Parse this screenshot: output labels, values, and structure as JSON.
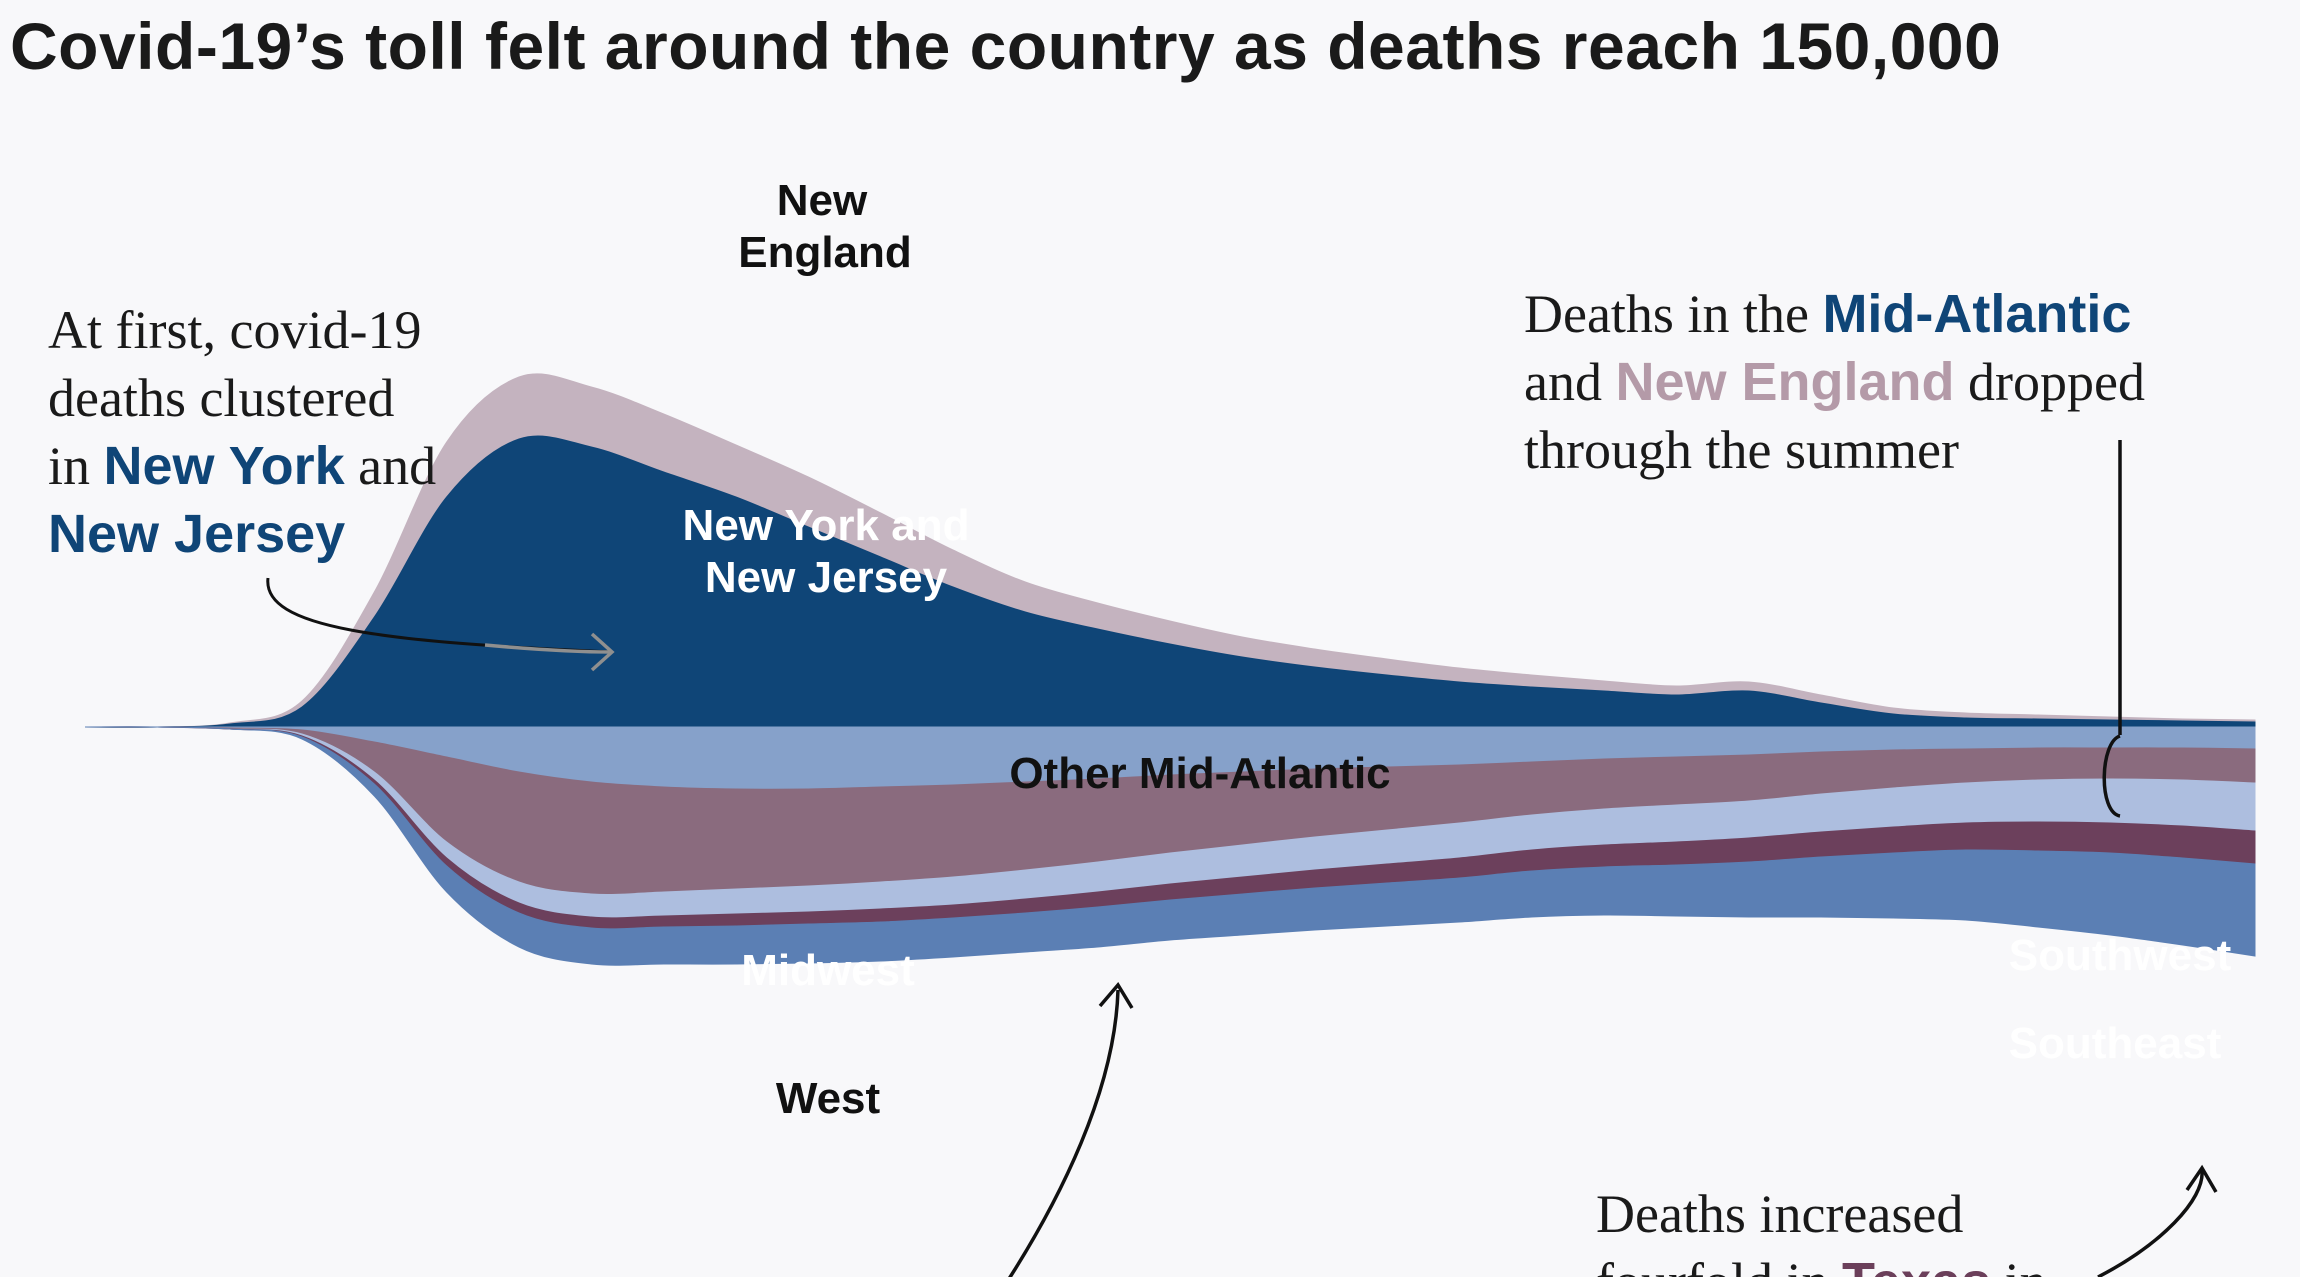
{
  "title": "Covid-19’s toll felt around the country as deaths reach 150,000",
  "chart_data": {
    "type": "area",
    "subtype": "streamgraph",
    "title": "Covid-19’s toll felt around the country as deaths reach 150,000",
    "xlabel": "",
    "ylabel": "",
    "grid": false,
    "legend": "inline labels",
    "x": [
      0,
      1,
      2,
      3,
      4,
      5,
      6,
      7,
      8,
      9,
      10,
      11,
      12,
      13,
      14,
      15,
      16,
      17,
      18,
      19,
      20,
      21,
      22,
      23,
      24,
      25,
      26,
      27,
      28,
      29,
      30
    ],
    "series": [
      {
        "name": "New England",
        "color": "#c4b3bf",
        "values": [
          0,
          0,
          1,
          6,
          25,
          55,
          62,
          60,
          58,
          52,
          50,
          44,
          37,
          30,
          26,
          23,
          20,
          18,
          16,
          14,
          12,
          10,
          9,
          9,
          8,
          6,
          5,
          4,
          3,
          2,
          2
        ]
      },
      {
        "name": "New York and New Jersey",
        "color": "#0f4577",
        "values": [
          0,
          0,
          3,
          20,
          110,
          230,
          288,
          280,
          255,
          230,
          200,
          170,
          140,
          115,
          98,
          83,
          70,
          60,
          52,
          45,
          40,
          36,
          32,
          36,
          24,
          13,
          9,
          8,
          7,
          6,
          5
        ]
      },
      {
        "name": "Other Mid-Atlantic",
        "color": "#86a1ca",
        "values": [
          0,
          0,
          1,
          3,
          15,
          30,
          45,
          55,
          60,
          62,
          62,
          60,
          58,
          55,
          52,
          48,
          45,
          42,
          40,
          38,
          35,
          32,
          30,
          28,
          25,
          23,
          22,
          21,
          21,
          21,
          22
        ]
      },
      {
        "name": "Midwest",
        "color": "#8a6b7e",
        "values": [
          0,
          0,
          1,
          4,
          30,
          85,
          110,
          112,
          105,
          100,
          97,
          95,
          92,
          88,
          83,
          78,
          73,
          68,
          63,
          58,
          53,
          50,
          48,
          46,
          42,
          38,
          34,
          32,
          31,
          32,
          34
        ]
      },
      {
        "name": "West",
        "color": "#adbedf",
        "values": [
          0,
          0,
          0,
          2,
          8,
          16,
          21,
          23,
          24,
          25,
          26,
          27,
          28,
          29,
          30,
          31,
          32,
          33,
          34,
          35,
          35,
          36,
          37,
          37,
          38,
          39,
          40,
          42,
          44,
          46,
          48
        ]
      },
      {
        "name": "Southwest",
        "color": "#6c405c",
        "values": [
          0,
          0,
          0,
          1,
          4,
          8,
          10,
          11,
          11,
          12,
          12,
          13,
          13,
          14,
          15,
          16,
          17,
          18,
          19,
          20,
          21,
          22,
          23,
          24,
          25,
          26,
          27,
          29,
          30,
          32,
          33
        ]
      },
      {
        "name": "Southeast",
        "color": "#5b7fb4",
        "values": [
          0,
          0,
          0,
          2,
          12,
          26,
          34,
          36,
          37,
          38,
          39,
          39,
          39,
          39,
          40,
          40,
          41,
          42,
          43,
          44,
          46,
          48,
          51,
          55,
          60,
          65,
          70,
          76,
          82,
          87,
          92
        ]
      }
    ]
  },
  "region_labels": {
    "ne_1": "New",
    "ne_2": "England",
    "nyc_1": "New York and",
    "nyc_2": "New Jersey",
    "oma": "Other Mid-Atlantic",
    "mw": "Midwest",
    "west": "West",
    "sw": "Southwest",
    "se": "Southeast"
  },
  "annotations": {
    "left": {
      "t1": "At first, covid-19",
      "t2": "deaths clustered",
      "t3": "in",
      "ny": "New York",
      "and": "and",
      "nj": "New Jersey"
    },
    "right": {
      "t1": "Deaths in the",
      "ma": "Mid-Atlantic",
      "and": "and",
      "ne": "New England",
      "dropped": "dropped",
      "t3": "through the summer"
    },
    "bottom": {
      "t1": "Deaths increased",
      "t2a": "fourfold in",
      "tx": "Texas",
      "t2b": "in"
    }
  },
  "colors": {
    "background": "#f8f8fa",
    "ny_nj": "#0f4577",
    "new_england": "#b49aa8",
    "texas": "#6b3f5a"
  }
}
